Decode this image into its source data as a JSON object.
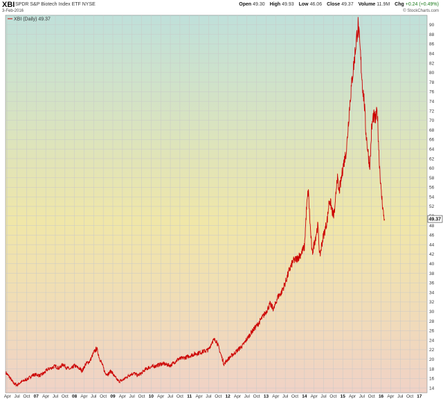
{
  "header": {
    "ticker": "XBI",
    "name": "SPDR S&P Biotech Index ETF NYSE",
    "date": "3-Feb-2016",
    "open_label": "Open",
    "open_value": "49.30",
    "high_label": "High",
    "high_value": "49.93",
    "low_label": "Low",
    "low_value": "46.06",
    "close_label": "Close",
    "close_value": "49.37",
    "volume_label": "Volume",
    "volume_value": "11.9M",
    "chg_label": "Chg",
    "chg_value": "+0.24 (+0.49%)",
    "credit": "© StockCharts.com"
  },
  "colors": {
    "line": "#cc0000",
    "bg_top": "#bfe0da",
    "bg_mid": "#f0e6a8",
    "bg_bottom": "#f0d2c6",
    "grid": "#c8c8c8",
    "last_label_bg": "#ffffff"
  },
  "chart_data": {
    "type": "line",
    "legend": "XBI (Daily) 49.37",
    "last_value": "49.37",
    "ylim": [
      13,
      92
    ],
    "y_ticks": [
      14,
      16,
      18,
      20,
      22,
      24,
      26,
      28,
      30,
      32,
      34,
      36,
      38,
      40,
      42,
      44,
      46,
      48,
      50,
      52,
      54,
      56,
      58,
      60,
      62,
      64,
      66,
      68,
      70,
      72,
      74,
      76,
      78,
      80,
      82,
      84,
      86,
      88,
      90
    ],
    "x_range": [
      2006.2,
      2017.2
    ],
    "grid": true,
    "legend_position": "top-left",
    "x_ticks": [
      {
        "x": 2006.25,
        "label": "Apr"
      },
      {
        "x": 2006.5,
        "label": "Jul"
      },
      {
        "x": 2006.75,
        "label": "Oct"
      },
      {
        "x": 2007.0,
        "label": "07",
        "year": true
      },
      {
        "x": 2007.25,
        "label": "Apr"
      },
      {
        "x": 2007.5,
        "label": "Jul"
      },
      {
        "x": 2007.75,
        "label": "Oct"
      },
      {
        "x": 2008.0,
        "label": "08",
        "year": true
      },
      {
        "x": 2008.25,
        "label": "Apr"
      },
      {
        "x": 2008.5,
        "label": "Jul"
      },
      {
        "x": 2008.75,
        "label": "Oct"
      },
      {
        "x": 2009.0,
        "label": "09",
        "year": true
      },
      {
        "x": 2009.25,
        "label": "Apr"
      },
      {
        "x": 2009.5,
        "label": "Jul"
      },
      {
        "x": 2009.75,
        "label": "Oct"
      },
      {
        "x": 2010.0,
        "label": "10",
        "year": true
      },
      {
        "x": 2010.25,
        "label": "Apr"
      },
      {
        "x": 2010.5,
        "label": "Jul"
      },
      {
        "x": 2010.75,
        "label": "Oct"
      },
      {
        "x": 2011.0,
        "label": "11",
        "year": true
      },
      {
        "x": 2011.25,
        "label": "Apr"
      },
      {
        "x": 2011.5,
        "label": "Jul"
      },
      {
        "x": 2011.75,
        "label": "Oct"
      },
      {
        "x": 2012.0,
        "label": "12",
        "year": true
      },
      {
        "x": 2012.25,
        "label": "Apr"
      },
      {
        "x": 2012.5,
        "label": "Jul"
      },
      {
        "x": 2012.75,
        "label": "Oct"
      },
      {
        "x": 2013.0,
        "label": "13",
        "year": true
      },
      {
        "x": 2013.25,
        "label": "Apr"
      },
      {
        "x": 2013.5,
        "label": "Jul"
      },
      {
        "x": 2013.75,
        "label": "Oct"
      },
      {
        "x": 2014.0,
        "label": "14",
        "year": true
      },
      {
        "x": 2014.25,
        "label": "Apr"
      },
      {
        "x": 2014.5,
        "label": "Jul"
      },
      {
        "x": 2014.75,
        "label": "Oct"
      },
      {
        "x": 2015.0,
        "label": "15",
        "year": true
      },
      {
        "x": 2015.25,
        "label": "Apr"
      },
      {
        "x": 2015.5,
        "label": "Jul"
      },
      {
        "x": 2015.75,
        "label": "Oct"
      },
      {
        "x": 2016.0,
        "label": "16",
        "year": true
      },
      {
        "x": 2016.25,
        "label": "Apr"
      },
      {
        "x": 2016.5,
        "label": "Jul"
      },
      {
        "x": 2016.75,
        "label": "Oct"
      },
      {
        "x": 2017.0,
        "label": "17",
        "year": true
      }
    ],
    "series": [
      {
        "x": [
          2006.21,
          2006.3,
          2006.4,
          2006.5,
          2006.6,
          2006.7,
          2006.8,
          2006.9,
          2007.0,
          2007.1,
          2007.2,
          2007.3,
          2007.4,
          2007.5,
          2007.6,
          2007.7,
          2007.8,
          2007.9,
          2008.0,
          2008.1,
          2008.2,
          2008.3,
          2008.4,
          2008.5,
          2008.58,
          2008.65,
          2008.72,
          2008.8,
          2008.88,
          2008.95,
          2009.05,
          2009.15,
          2009.25,
          2009.35,
          2009.45,
          2009.55,
          2009.65,
          2009.75,
          2009.85,
          2009.95,
          2010.1,
          2010.3,
          2010.5,
          2010.7,
          2010.9,
          2011.1,
          2011.3,
          2011.5,
          2011.6,
          2011.7,
          2011.8,
          2011.9,
          2012.0,
          2012.2,
          2012.4,
          2012.6,
          2012.8,
          2013.0,
          2013.1,
          2013.2,
          2013.3,
          2013.4,
          2013.5,
          2013.6,
          2013.7,
          2013.8,
          2013.9,
          2014.0,
          2014.05,
          2014.1,
          2014.15,
          2014.2,
          2014.25,
          2014.3,
          2014.35,
          2014.4,
          2014.45,
          2014.5,
          2014.55,
          2014.6,
          2014.65,
          2014.7,
          2014.75,
          2014.8,
          2014.85,
          2014.9,
          2014.95,
          2015.0,
          2015.05,
          2015.1,
          2015.15,
          2015.2,
          2015.25,
          2015.3,
          2015.35,
          2015.4,
          2015.45,
          2015.5,
          2015.53,
          2015.56,
          2015.6,
          2015.65,
          2015.7,
          2015.72,
          2015.75,
          2015.8,
          2015.85,
          2015.9,
          2015.95,
          2015.98,
          2016.0,
          2016.03,
          2016.06,
          2016.09
        ],
        "values": [
          17.2,
          16.3,
          15.1,
          14.6,
          15.2,
          15.6,
          16.0,
          16.7,
          16.8,
          16.6,
          17.1,
          17.9,
          18.2,
          18.6,
          18.1,
          19.0,
          18.2,
          17.9,
          18.7,
          18.2,
          17.6,
          19.1,
          19.6,
          21.4,
          22.3,
          20.3,
          19.0,
          17.1,
          16.9,
          17.6,
          16.3,
          15.4,
          15.6,
          16.2,
          16.8,
          17.1,
          16.6,
          17.1,
          17.9,
          18.3,
          18.6,
          19.1,
          18.7,
          20.0,
          20.4,
          21.0,
          21.5,
          22.0,
          23.9,
          24.0,
          21.5,
          19.0,
          20.0,
          21.5,
          23.0,
          25.5,
          27.5,
          30.0,
          31.5,
          30.5,
          33.0,
          34.0,
          36.0,
          38.5,
          40.5,
          41.0,
          42.0,
          43.5,
          51.0,
          55.5,
          48.0,
          42.0,
          44.0,
          46.0,
          48.0,
          41.5,
          44.0,
          46.0,
          47.5,
          49.5,
          53.5,
          52.0,
          50.0,
          51.5,
          58.5,
          55.0,
          57.0,
          60.0,
          62.0,
          64.0,
          70.0,
          75.0,
          79.0,
          82.5,
          86.5,
          90.0,
          85.0,
          79.0,
          76.0,
          74.0,
          68.0,
          64.0,
          60.5,
          62.0,
          68.0,
          71.0,
          70.0,
          72.0,
          62.0,
          58.0,
          55.0,
          53.0,
          50.5,
          49.37
        ]
      }
    ]
  }
}
